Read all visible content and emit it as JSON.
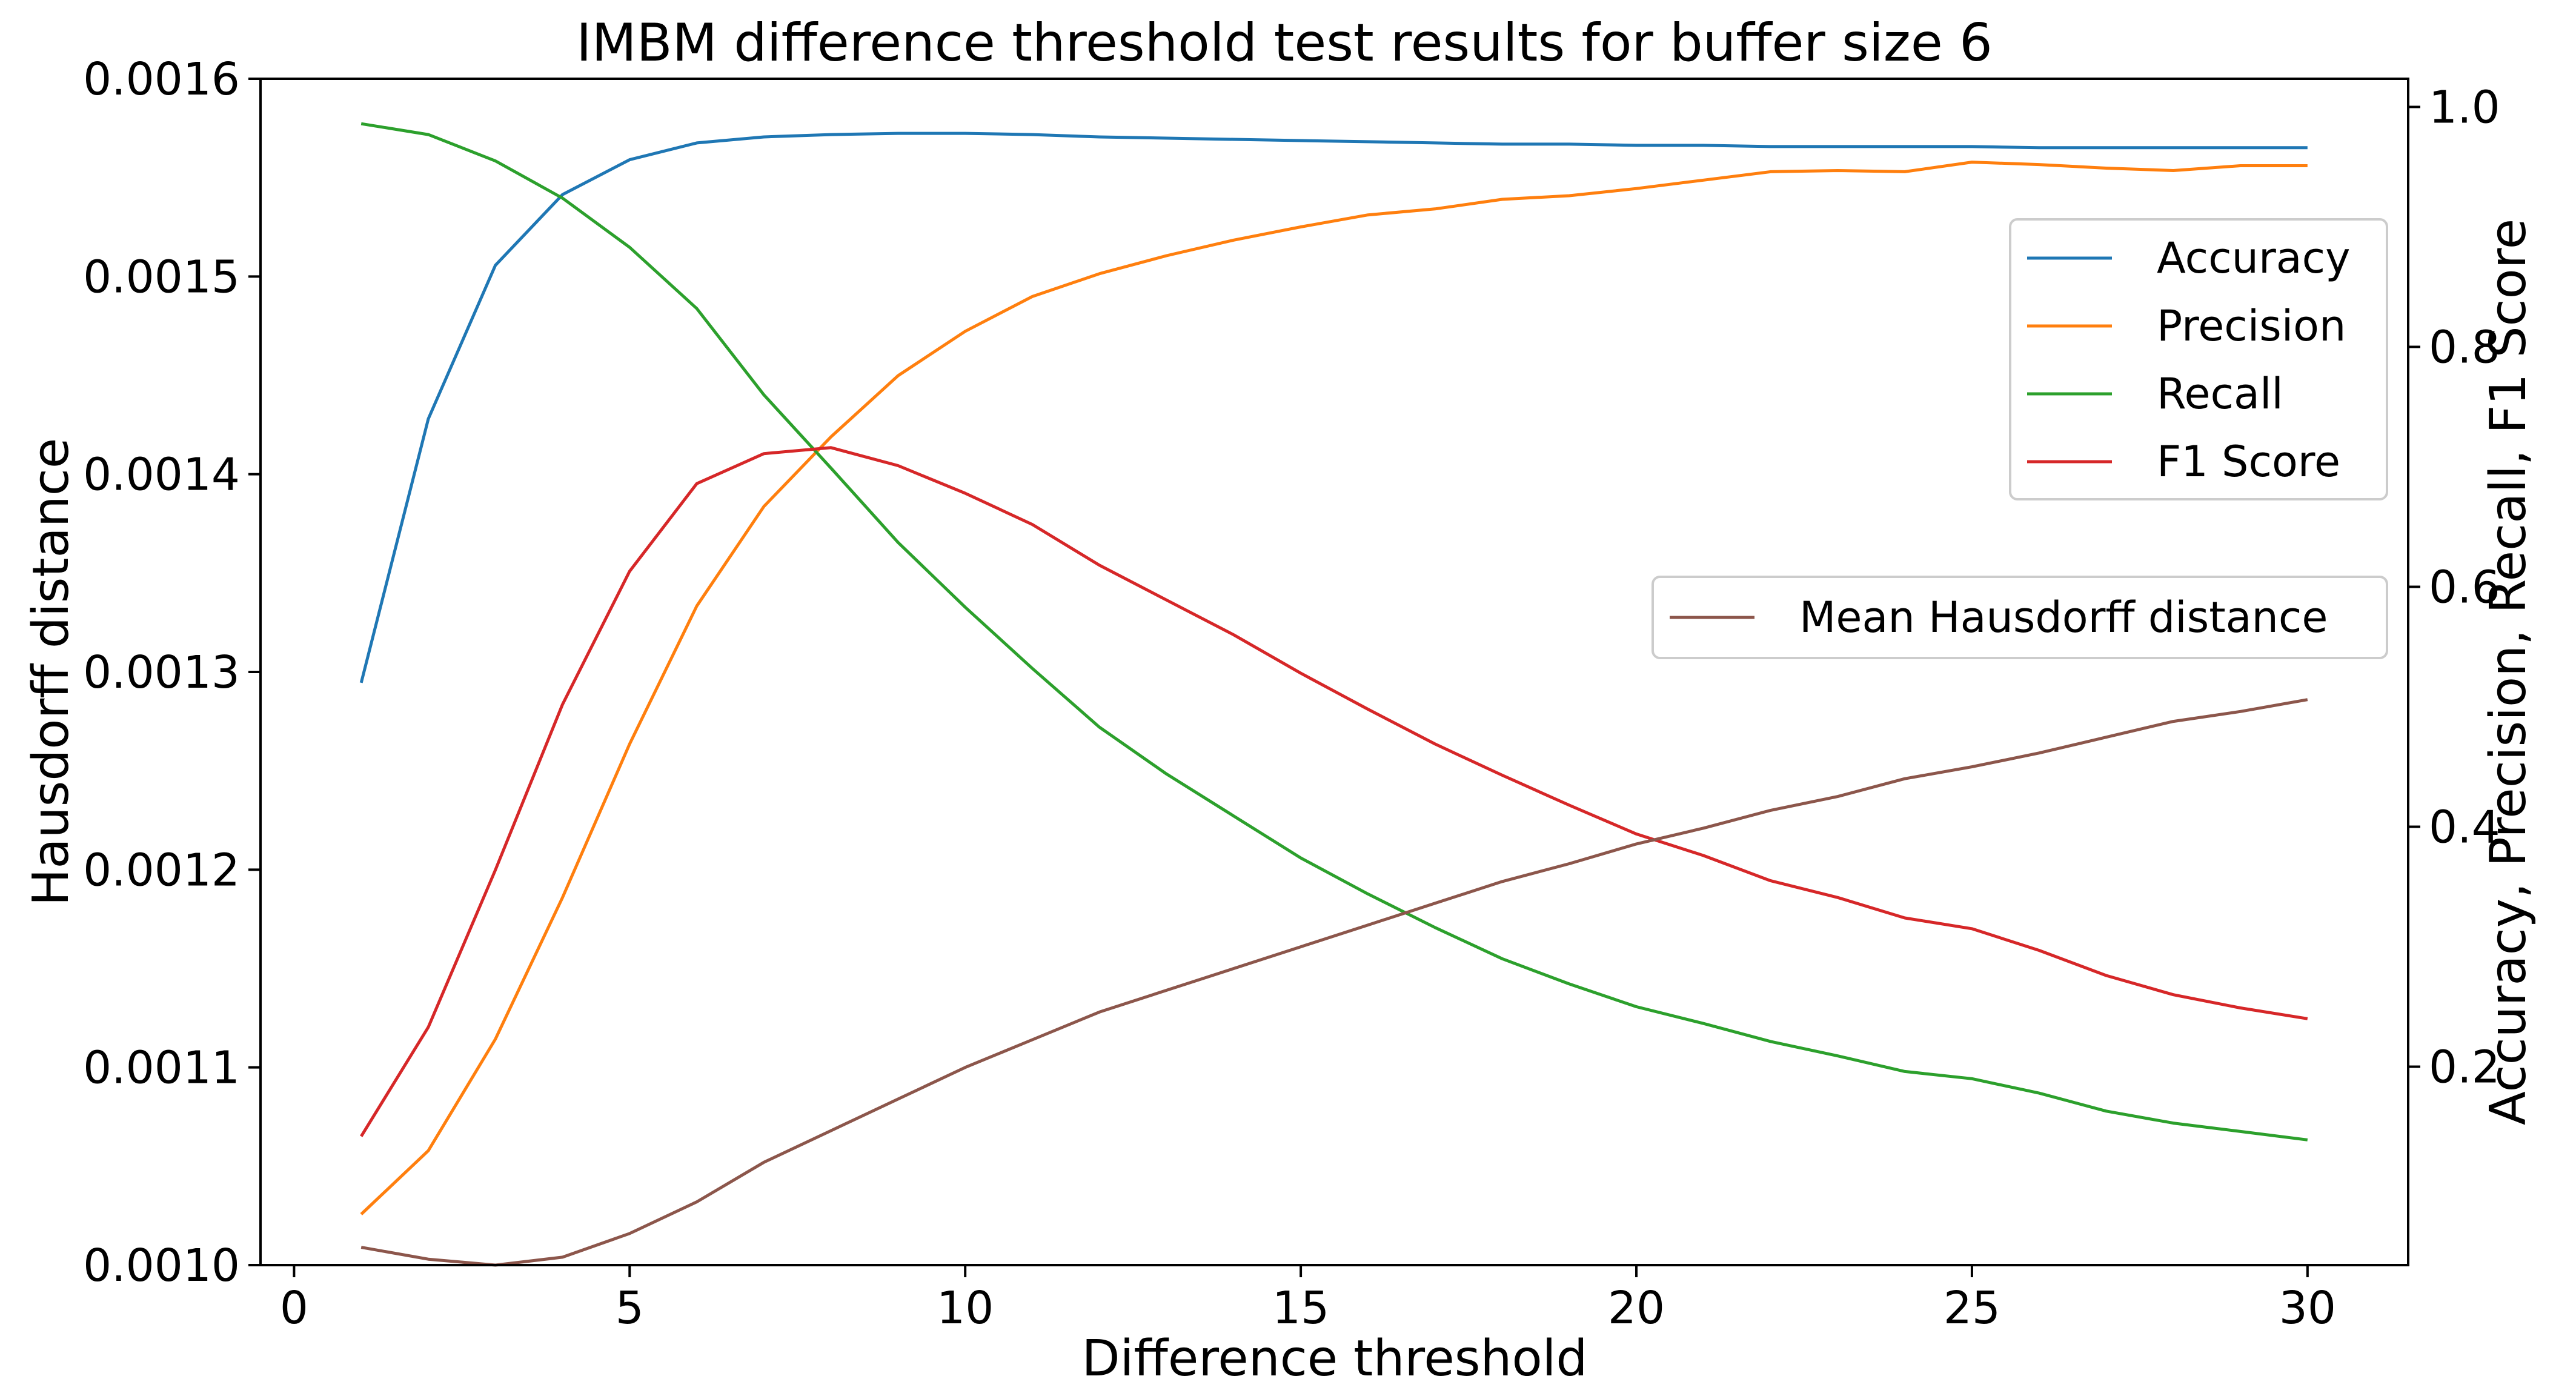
{
  "chart_data": {
    "type": "line",
    "title": "IMBM difference threshold test results for buffer size 6",
    "xlabel": "Difference threshold",
    "ylabel_left": "Hausdorff distance",
    "ylabel_right": "Accuracy, Precision, Recall, F1 Score",
    "x": [
      1,
      2,
      3,
      4,
      5,
      6,
      7,
      8,
      9,
      10,
      11,
      12,
      13,
      14,
      15,
      16,
      17,
      18,
      19,
      20,
      21,
      22,
      23,
      24,
      25,
      26,
      27,
      28,
      29,
      30
    ],
    "xlim": [
      -0.5,
      31.5
    ],
    "ylim_left": [
      0.001,
      0.0016
    ],
    "ylim_right": [
      0.0346,
      1.0235
    ],
    "x_ticks": [
      {
        "value": 0,
        "label": "0"
      },
      {
        "value": 5,
        "label": "5"
      },
      {
        "value": 10,
        "label": "10"
      },
      {
        "value": 15,
        "label": "15"
      },
      {
        "value": 20,
        "label": "20"
      },
      {
        "value": 25,
        "label": "25"
      },
      {
        "value": 30,
        "label": "30"
      }
    ],
    "y_left_ticks": [
      {
        "value": 0.001,
        "label": "0.0010"
      },
      {
        "value": 0.0011,
        "label": "0.0011"
      },
      {
        "value": 0.0012,
        "label": "0.0012"
      },
      {
        "value": 0.0013,
        "label": "0.0013"
      },
      {
        "value": 0.0014,
        "label": "0.0014"
      },
      {
        "value": 0.0015,
        "label": "0.0015"
      },
      {
        "value": 0.0016,
        "label": "0.0016"
      }
    ],
    "y_right_ticks": [
      {
        "value": 0.2,
        "label": "0.2"
      },
      {
        "value": 0.4,
        "label": "0.4"
      },
      {
        "value": 0.6,
        "label": "0.6"
      },
      {
        "value": 0.8,
        "label": "0.8"
      },
      {
        "value": 1.0,
        "label": "1.0"
      }
    ],
    "series_right": [
      {
        "name": "Accuracy",
        "color": "#1f77b4",
        "values": [
          0.52,
          0.74,
          0.868,
          0.927,
          0.956,
          0.97,
          0.975,
          0.977,
          0.978,
          0.978,
          0.977,
          0.975,
          0.974,
          0.973,
          0.972,
          0.971,
          0.97,
          0.969,
          0.969,
          0.968,
          0.968,
          0.967,
          0.967,
          0.967,
          0.967,
          0.966,
          0.966,
          0.966,
          0.966,
          0.966
        ]
      },
      {
        "name": "Precision",
        "color": "#ff7f0e",
        "values": [
          0.077,
          0.13,
          0.223,
          0.341,
          0.469,
          0.584,
          0.667,
          0.725,
          0.776,
          0.813,
          0.842,
          0.861,
          0.876,
          0.889,
          0.9,
          0.91,
          0.915,
          0.923,
          0.926,
          0.932,
          0.939,
          0.946,
          0.947,
          0.946,
          0.954,
          0.952,
          0.949,
          0.947,
          0.951,
          0.951
        ]
      },
      {
        "name": "Recall",
        "color": "#2ca02c",
        "values": [
          0.986,
          0.977,
          0.955,
          0.924,
          0.883,
          0.832,
          0.76,
          0.699,
          0.637,
          0.583,
          0.532,
          0.483,
          0.444,
          0.409,
          0.374,
          0.344,
          0.316,
          0.29,
          0.269,
          0.25,
          0.236,
          0.221,
          0.209,
          0.196,
          0.19,
          0.178,
          0.163,
          0.153,
          0.146,
          0.139
        ]
      },
      {
        "name": "F1 Score",
        "color": "#d62728",
        "values": [
          0.142,
          0.233,
          0.364,
          0.502,
          0.613,
          0.686,
          0.711,
          0.716,
          0.701,
          0.678,
          0.652,
          0.618,
          0.589,
          0.56,
          0.528,
          0.498,
          0.469,
          0.443,
          0.418,
          0.394,
          0.376,
          0.355,
          0.341,
          0.324,
          0.315,
          0.297,
          0.276,
          0.26,
          0.249,
          0.24
        ]
      }
    ],
    "series_left": [
      {
        "name": "Mean Hausdorff distance",
        "color": "#8c564b",
        "values": [
          0.001009,
          0.001003,
          0.001,
          0.001004,
          0.001016,
          0.001032,
          0.001052,
          0.001068,
          0.001084,
          0.0011,
          0.001114,
          0.001128,
          0.001139,
          0.00115,
          0.001161,
          0.001172,
          0.001183,
          0.001194,
          0.001203,
          0.001213,
          0.001221,
          0.00123,
          0.001237,
          0.001246,
          0.001252,
          0.001259,
          0.001267,
          0.001275,
          0.00128,
          0.001286
        ]
      }
    ],
    "legend_right_placement": "upper-right",
    "legend_left_placement": "center-right",
    "grid": false
  }
}
